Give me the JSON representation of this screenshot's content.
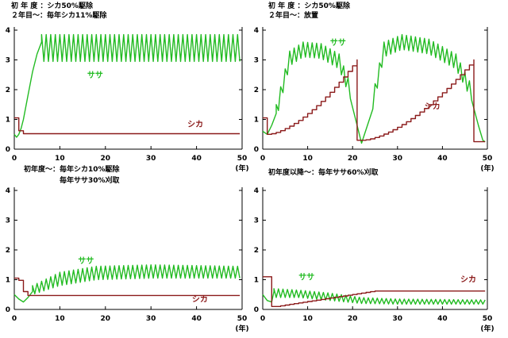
{
  "unit_label": "(年)",
  "colors": {
    "sasa": "#22bb22",
    "shika": "#8b1a1a",
    "axis": "#000000"
  },
  "chart_data": [
    {
      "type": "line",
      "caption": [
        "初 年 度 ：シカ50%駆除",
        "２年目～：毎年シカ11%駆除"
      ],
      "xlim": [
        0,
        50
      ],
      "ylim": [
        0,
        4
      ],
      "xticks": [
        0,
        10,
        20,
        30,
        40,
        50
      ],
      "yticks": [
        0,
        1,
        2,
        3,
        4
      ],
      "series": [
        {
          "name": "ササ",
          "color": "#22bb22",
          "label_at": [
            16,
            2.4
          ],
          "osc": {
            "start": 6,
            "end": 49.5,
            "upper": 3.85,
            "lower": 2.95,
            "period": 1
          },
          "x": [
            0,
            0.5,
            1,
            1.5,
            2,
            3,
            4,
            5,
            6
          ],
          "y": [
            0.5,
            0.4,
            0.5,
            0.7,
            1.0,
            1.8,
            2.6,
            3.2,
            3.6
          ]
        },
        {
          "name": "シカ",
          "color": "#8b1a1a",
          "label_at": [
            38,
            0.75
          ],
          "x": [
            0,
            1,
            1,
            2,
            2,
            49.5
          ],
          "y": [
            1.05,
            1.05,
            0.62,
            0.62,
            0.52,
            0.52
          ]
        }
      ]
    },
    {
      "type": "line",
      "caption": [
        "初 年 度 ：シカ50%駆除",
        "２年目～：放置"
      ],
      "xlim": [
        0,
        50
      ],
      "ylim": [
        0,
        4
      ],
      "xticks": [
        0,
        10,
        20,
        30,
        40,
        50
      ],
      "yticks": [
        0,
        1,
        2,
        3,
        4
      ],
      "series": [
        {
          "name": "ササ",
          "color": "#22bb22",
          "label_at": [
            15,
            3.5
          ],
          "osc": {
            "segments": [
              {
                "start": 3,
                "end": 20,
                "upper": [
                  [
                    3,
                    1.5
                  ],
                  [
                    6,
                    3.3
                  ],
                  [
                    9,
                    3.6
                  ],
                  [
                    13,
                    3.55
                  ],
                  [
                    17,
                    3.2
                  ],
                  [
                    20,
                    2.0
                  ]
                ],
                "amp": 0.5,
                "period": 1
              },
              {
                "start": 24,
                "end": 47,
                "upper": [
                  [
                    24,
                    1.5
                  ],
                  [
                    27,
                    3.6
                  ],
                  [
                    31,
                    3.85
                  ],
                  [
                    37,
                    3.7
                  ],
                  [
                    43,
                    3.2
                  ],
                  [
                    47,
                    2.0
                  ]
                ],
                "amp": 0.5,
                "period": 1
              }
            ]
          },
          "x": [
            0,
            1,
            2,
            3,
            20,
            21,
            22,
            24,
            47,
            48,
            49,
            49.5
          ],
          "y": [
            0.6,
            0.5,
            0.8,
            1.2,
            1.6,
            0.8,
            0.2,
            1.1,
            1.5,
            0.8,
            0.3,
            0.25
          ]
        },
        {
          "name": "シカ",
          "color": "#8b1a1a",
          "label_at": [
            36,
            1.35
          ],
          "fn": "growth",
          "cycles": [
            {
              "x0": 1,
              "x1": 21,
              "y0": 0.5,
              "y1": 3.0
            },
            {
              "x0": 22,
              "x1": 47,
              "y0": 0.3,
              "y1": 3.0
            }
          ],
          "x": [
            0,
            1
          ],
          "y": [
            1.05,
            1.05
          ],
          "tail": {
            "x": [
              47,
              47,
              49.5
            ],
            "y": [
              3.0,
              0.25,
              0.25
            ]
          }
        }
      ]
    },
    {
      "type": "line",
      "caption": [
        "初年度～：毎年シカ10%駆除",
        "　　　　　毎年ササ30%刈取"
      ],
      "xlim": [
        0,
        50
      ],
      "ylim": [
        0,
        4
      ],
      "xticks": [
        0,
        10,
        20,
        30,
        40,
        50
      ],
      "yticks": [
        0,
        1,
        2,
        3,
        4
      ],
      "series": [
        {
          "name": "ササ",
          "color": "#22bb22",
          "label_at": [
            14,
            1.55
          ],
          "osc": {
            "start": 4,
            "end": 49.5,
            "upper": [
              [
                4,
                0.8
              ],
              [
                10,
                1.25
              ],
              [
                18,
                1.45
              ],
              [
                30,
                1.5
              ],
              [
                49.5,
                1.45
              ]
            ],
            "lower": [
              [
                4,
                0.5
              ],
              [
                10,
                0.8
              ],
              [
                18,
                1.0
              ],
              [
                30,
                1.05
              ],
              [
                49.5,
                1.05
              ]
            ],
            "period": 1
          },
          "x": [
            0,
            1,
            2,
            3,
            4
          ],
          "y": [
            0.5,
            0.35,
            0.25,
            0.4,
            0.6
          ]
        },
        {
          "name": "シカ",
          "color": "#8b1a1a",
          "label_at": [
            39,
            0.25
          ],
          "x": [
            0,
            1,
            1,
            2,
            2,
            3,
            3,
            49.5
          ],
          "y": [
            1.05,
            1.05,
            0.98,
            0.98,
            0.6,
            0.6,
            0.47,
            0.47
          ]
        }
      ]
    },
    {
      "type": "line",
      "caption": [
        "初年度以降～：毎年ササ60%刈取"
      ],
      "xlim": [
        0,
        50
      ],
      "ylim": [
        0,
        4
      ],
      "xticks": [
        0,
        10,
        20,
        30,
        40,
        50
      ],
      "yticks": [
        0,
        1,
        2,
        3,
        4
      ],
      "series": [
        {
          "name": "ササ",
          "color": "#22bb22",
          "label_at": [
            8,
            1.0
          ],
          "osc": {
            "start": 2.5,
            "end": 49.5,
            "upper": [
              [
                2.5,
                0.7
              ],
              [
                8,
                0.65
              ],
              [
                15,
                0.55
              ],
              [
                22,
                0.4
              ],
              [
                30,
                0.35
              ],
              [
                49.5,
                0.32
              ]
            ],
            "lower": [
              [
                2.5,
                0.4
              ],
              [
                8,
                0.4
              ],
              [
                15,
                0.3
              ],
              [
                22,
                0.2
              ],
              [
                30,
                0.18
              ],
              [
                49.5,
                0.18
              ]
            ],
            "period": 1
          },
          "x": [
            0,
            1,
            2,
            2.5
          ],
          "y": [
            0.5,
            0.3,
            0.25,
            0.6
          ]
        },
        {
          "name": "シカ",
          "color": "#8b1a1a",
          "label_at": [
            44,
            0.92
          ],
          "fn": "ramp",
          "x": [
            0,
            2,
            2,
            3,
            25,
            49.5
          ],
          "y": [
            1.1,
            1.1,
            0.1,
            0.1,
            0.62,
            0.62
          ]
        }
      ]
    }
  ]
}
